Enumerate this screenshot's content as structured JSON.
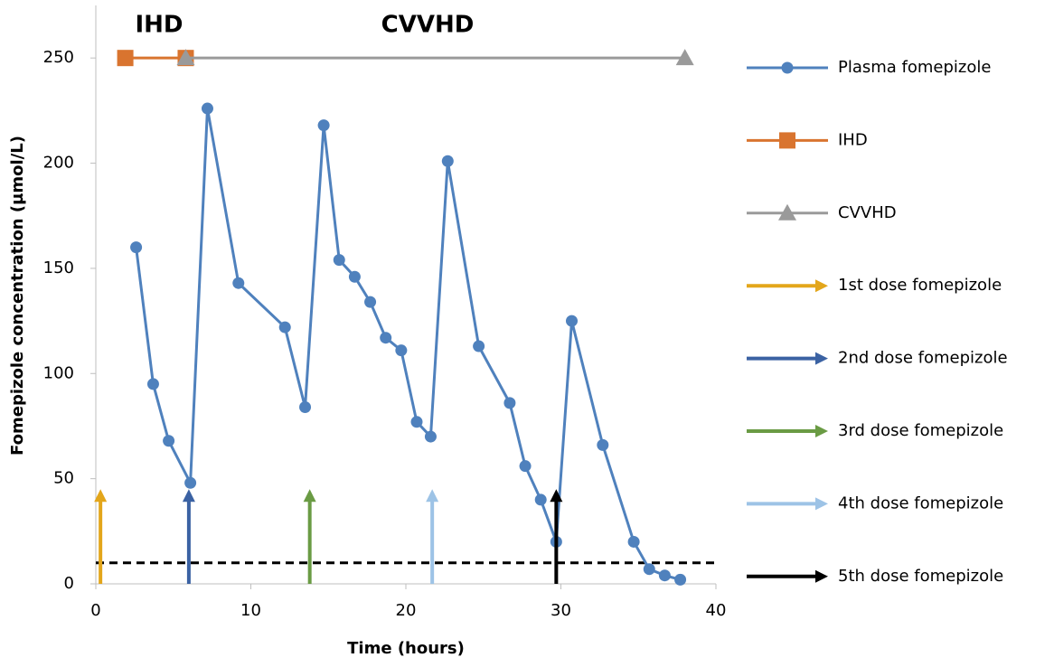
{
  "chart_data": {
    "type": "line",
    "x_label": "Time (hours)",
    "y_label": "Fomepizole concentration (µmol/L)",
    "annotations": [
      "IHD",
      "CVVHD"
    ],
    "xlim": [
      0,
      40
    ],
    "xticks": [
      0,
      10,
      20,
      30,
      40
    ],
    "ylim": [
      0,
      275
    ],
    "yticks": [
      0,
      50,
      100,
      150,
      200,
      250
    ],
    "reference_line": {
      "y": 10,
      "color": "#000000",
      "dashed": true
    },
    "series": [
      {
        "name": "Plasma fomepizole",
        "color": "#4f81bd",
        "marker": "circle",
        "x": [
          2.6,
          3.7,
          4.7,
          6.1,
          7.2,
          9.2,
          12.2,
          13.5,
          14.7,
          15.7,
          16.7,
          17.7,
          18.7,
          19.7,
          20.7,
          21.6,
          22.7,
          24.7,
          26.7,
          27.7,
          28.7,
          29.7,
          30.7,
          32.7,
          34.7,
          35.7,
          36.7,
          37.7
        ],
        "values": [
          160,
          95,
          68,
          48,
          226,
          143,
          122,
          84,
          218,
          154,
          146,
          134,
          117,
          111,
          77,
          70,
          201,
          113,
          86,
          56,
          40,
          20,
          125,
          66,
          20,
          7,
          4,
          2
        ]
      },
      {
        "name": "IHD",
        "color": "#d9742f",
        "marker": "square",
        "x": [
          1.9,
          5.8
        ],
        "values": [
          250,
          250
        ]
      },
      {
        "name": "CVVHD",
        "color": "#9a9a9a",
        "marker": "triangle",
        "x": [
          5.8,
          38
        ],
        "values": [
          250,
          250
        ]
      },
      {
        "name": "1st dose fomepizole",
        "color": "#e3a61b",
        "marker": "arrow",
        "x": [
          0.3,
          0.3
        ],
        "values": [
          0,
          45
        ]
      },
      {
        "name": "2nd dose fomepizole",
        "color": "#3b62a3",
        "marker": "arrow",
        "x": [
          6,
          6
        ],
        "values": [
          0,
          45
        ]
      },
      {
        "name": "3rd dose fomepizole",
        "color": "#6a9b44",
        "marker": "arrow",
        "x": [
          13.8,
          13.8
        ],
        "values": [
          0,
          45
        ]
      },
      {
        "name": "4th dose fomepizole",
        "color": "#9dc3e6",
        "marker": "arrow",
        "x": [
          21.7,
          21.7
        ],
        "values": [
          0,
          45
        ]
      },
      {
        "name": "5th dose fomepizole",
        "color": "#000000",
        "marker": "arrow",
        "x": [
          29.7,
          29.7
        ],
        "values": [
          0,
          45
        ]
      }
    ]
  }
}
